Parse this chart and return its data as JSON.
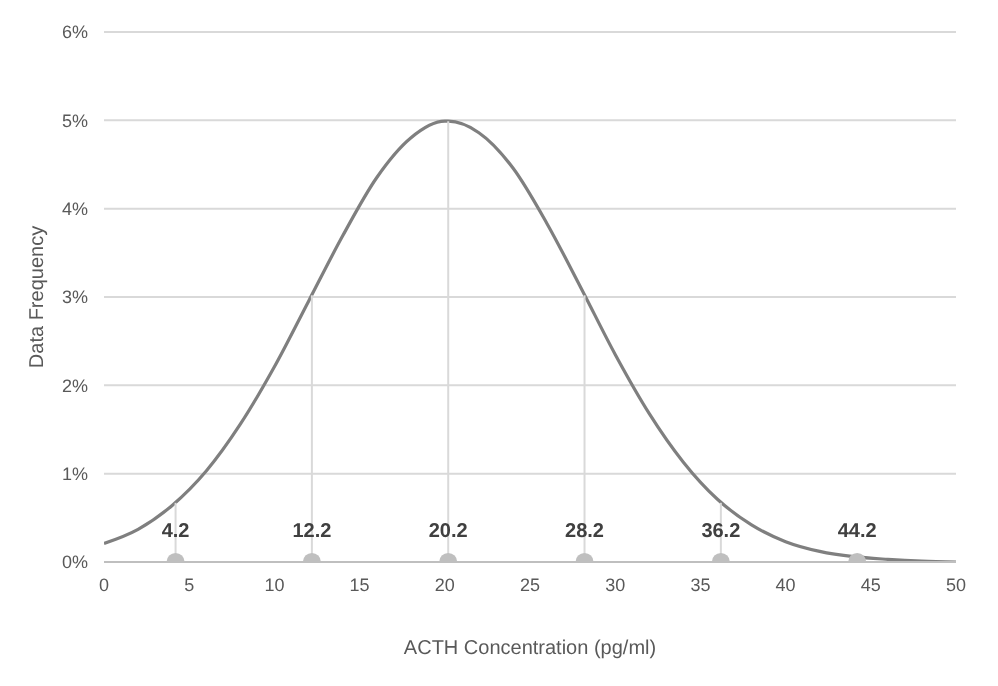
{
  "chart_data": {
    "type": "line",
    "xlabel": "ACTH Concentration (pg/ml)",
    "ylabel": "Data Frequency",
    "xlim": [
      0,
      50
    ],
    "xticks": [
      0,
      5,
      10,
      15,
      20,
      25,
      30,
      35,
      40,
      45,
      50
    ],
    "ylim": [
      0,
      6
    ],
    "yticks": [
      {
        "value": 0,
        "label": "0%"
      },
      {
        "value": 1,
        "label": "1%"
      },
      {
        "value": 2,
        "label": "2%"
      },
      {
        "value": 3,
        "label": "3%"
      },
      {
        "value": 4,
        "label": "4%"
      },
      {
        "value": 5,
        "label": "5%"
      },
      {
        "value": 6,
        "label": "6%"
      }
    ],
    "grid": "y",
    "legend": false,
    "marker": "none",
    "line_style": "solid",
    "annotations": [
      {
        "text": "4.2",
        "x": 4.2,
        "y": 0
      },
      {
        "text": "12.2",
        "x": 12.2,
        "y": 0
      },
      {
        "text": "20.2",
        "x": 20.2,
        "y": 0
      },
      {
        "text": "28.2",
        "x": 28.2,
        "y": 0
      },
      {
        "text": "36.2",
        "x": 36.2,
        "y": 0
      },
      {
        "text": "44.2",
        "x": 44.2,
        "y": 0
      }
    ],
    "series": [
      {
        "color": "#7f7f7f",
        "x": [
          0,
          2,
          4,
          6,
          8,
          10,
          12,
          14,
          16,
          18,
          20,
          20.2,
          22,
          24,
          26,
          28,
          30,
          32,
          34,
          36,
          38,
          40,
          42,
          44,
          46,
          48,
          50
        ],
        "values": [
          0.21,
          0.37,
          0.64,
          1.03,
          1.56,
          2.21,
          2.95,
          3.69,
          4.35,
          4.8,
          4.99,
          4.99,
          4.86,
          4.46,
          3.83,
          3.1,
          2.35,
          1.68,
          1.13,
          0.71,
          0.42,
          0.23,
          0.12,
          0.06,
          0.03,
          0.01,
          0.0
        ]
      },
      {
        "type": "scatter",
        "color": "#bfbfbf",
        "marker": "circle",
        "x": [
          4.2,
          12.2,
          20.2,
          28.2,
          36.2,
          44.2
        ],
        "values": [
          0,
          0,
          0,
          0,
          0,
          0
        ],
        "errors": [
          [
            0,
            0.67
          ],
          [
            0,
            3.02
          ],
          [
            0,
            4.99
          ],
          [
            0,
            3.02
          ],
          [
            0,
            0.67
          ],
          null
        ]
      }
    ]
  }
}
